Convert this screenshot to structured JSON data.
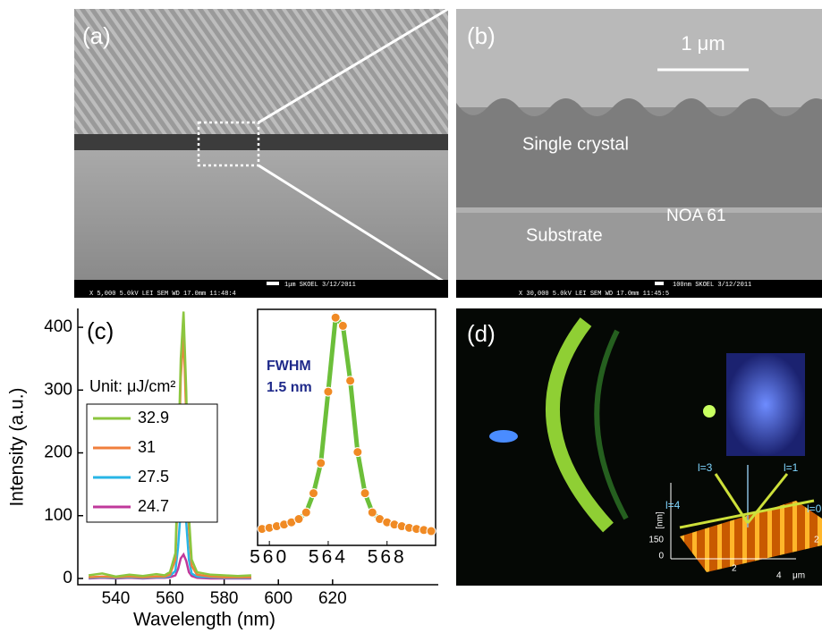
{
  "panels": {
    "a": {
      "label": "(a)",
      "footer_top": "1μm  SKOEL     3/12/2011",
      "footer_bottom": "X 5,000     5.0kV  LEI     SEM       WD 17.0mm  11:48:4"
    },
    "b": {
      "label": "(b)",
      "scale": "1 μm",
      "crystal": "Single crystal",
      "noa": "NOA 61",
      "substrate": "Substrate",
      "footer_top": "100nm  SKOEL     3/12/2011",
      "footer_bottom": "X 30,000     5.0kV  LEI     SEM       WD 17.0mm  11:45:5"
    },
    "d": {
      "label": "(d)",
      "modes": [
        "l=3",
        "l=1",
        "l=4",
        "l=0"
      ],
      "z_unit": "[nm]",
      "z_ticks": [
        "0",
        "150"
      ],
      "xy_ticks": [
        "2",
        "4",
        "2"
      ],
      "xy_unit": "μm"
    }
  },
  "chart_data": [
    {
      "type": "line",
      "panel_label": "(c)",
      "x_label": "Wavelength (nm)",
      "y_label": "Intensity (a.u.)",
      "legend_title": "Unit: μJ/cm²",
      "x": [
        530,
        535,
        540,
        545,
        550,
        555,
        558,
        560,
        562,
        563,
        564,
        565,
        566,
        567,
        568,
        570,
        575,
        580,
        585,
        590
      ],
      "series": [
        {
          "name": "32.9",
          "color": "#8cc63f",
          "values": [
            5,
            8,
            3,
            6,
            4,
            7,
            5,
            10,
            40,
            180,
            350,
            425,
            300,
            100,
            30,
            10,
            6,
            5,
            4,
            5
          ]
        },
        {
          "name": "31",
          "color": "#f07f3c",
          "values": [
            2,
            3,
            2,
            3,
            2,
            3,
            3,
            6,
            30,
            150,
            320,
            390,
            260,
            80,
            20,
            6,
            3,
            2,
            2,
            2
          ]
        },
        {
          "name": "27.5",
          "color": "#29b6e6",
          "values": [
            1,
            2,
            1,
            2,
            1,
            2,
            2,
            4,
            12,
            50,
            110,
            127,
            90,
            30,
            8,
            3,
            2,
            1,
            1,
            1
          ]
        },
        {
          "name": "24.7",
          "color": "#c0399b",
          "values": [
            0,
            1,
            0,
            1,
            0,
            1,
            1,
            2,
            5,
            15,
            32,
            38,
            28,
            10,
            4,
            1,
            0,
            0,
            0,
            0
          ]
        }
      ],
      "xlim": [
        526,
        659
      ],
      "ylim": [
        -10,
        430
      ],
      "xticks": [
        540,
        560,
        580,
        600,
        620
      ],
      "yticks": [
        0,
        100,
        200,
        300,
        400
      ]
    },
    {
      "type": "scatter",
      "annotation": [
        "FWHM",
        "1.5 nm"
      ],
      "x": [
        559.5,
        560,
        560.5,
        561,
        561.5,
        562,
        562.5,
        563,
        563.5,
        564,
        564.5,
        565,
        565.5,
        566,
        566.5,
        567,
        567.5,
        568,
        568.5,
        569,
        569.5,
        570,
        570.5,
        571
      ],
      "series": [
        {
          "color": "#f08a24",
          "line_color": "#6cbf3a",
          "values": [
            30,
            32,
            35,
            38,
            42,
            48,
            60,
            95,
            150,
            280,
            415,
            400,
            300,
            170,
            95,
            60,
            48,
            42,
            38,
            35,
            32,
            30,
            28,
            26
          ]
        }
      ],
      "xlim": [
        559.2,
        571.3
      ],
      "ylim": [
        0,
        430
      ],
      "xticks": [
        560,
        564,
        568
      ]
    }
  ]
}
